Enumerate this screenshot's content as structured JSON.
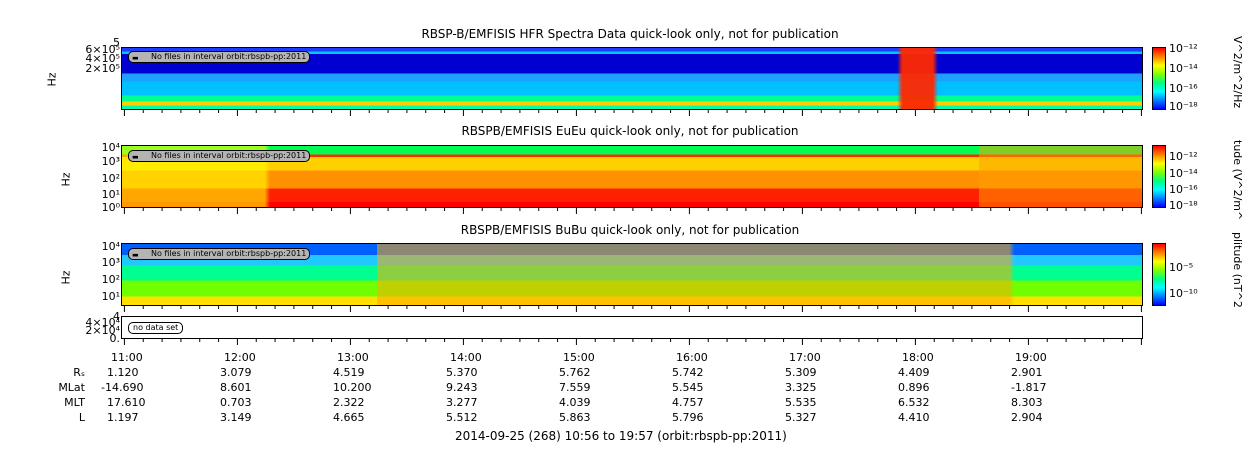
{
  "chart_data": [
    {
      "type": "heatmap",
      "title": "RBSP-B/EMFISIS  HFR Spectra Data quick-look only, not for publication",
      "ylabel": "Hz",
      "yticks": [
        "6×10⁵",
        "4×10⁵",
        "2×10⁵"
      ],
      "ytop": "5",
      "zlabel": "V^2/m^2/Hz",
      "zticks": [
        "10⁻¹²",
        "10⁻¹⁴",
        "10⁻¹⁶",
        "10⁻¹⁸"
      ],
      "note": "No files in interval orbit:rbspb-pp:2011"
    },
    {
      "type": "heatmap",
      "title": "RBSPB/EMFISIS  EuEu quick-look only, not for publication",
      "ylabel": "Hz",
      "yticks": [
        "10⁴",
        "10³",
        "10²",
        "10¹",
        "10⁰"
      ],
      "zlabel": "tude (V^2/m^",
      "zticks": [
        "10⁻¹²",
        "10⁻¹⁴",
        "10⁻¹⁶",
        "10⁻¹⁸"
      ],
      "note": "No files in interval orbit:rbspb-pp:2011"
    },
    {
      "type": "heatmap",
      "title": "RBSPB/EMFISIS  BuBu quick-look only, not for publication",
      "ylabel": "Hz",
      "yticks": [
        "10⁴",
        "10³",
        "10²",
        "10¹"
      ],
      "zlabel": "plitude (nT^2",
      "zticks": [
        "10⁻⁵",
        "10⁻¹⁰"
      ],
      "note": "No files in interval orbit:rbspb-pp:2011"
    },
    {
      "type": "line",
      "title": "",
      "yticks": [
        "4×10⁴",
        "2×10⁴",
        "0."
      ],
      "ytop": "4",
      "note": "no data set"
    }
  ],
  "time_axis": {
    "labels": [
      "11:00",
      "12:00",
      "13:00",
      "14:00",
      "15:00",
      "16:00",
      "17:00",
      "18:00",
      "19:00"
    ]
  },
  "ephemeris": [
    {
      "label": "Rₛ",
      "values": [
        "1.120",
        "3.079",
        "4.519",
        "5.370",
        "5.762",
        "5.742",
        "5.309",
        "4.409",
        "2.901"
      ]
    },
    {
      "label": "MLat",
      "values": [
        "-14.690",
        "8.601",
        "10.200",
        "9.243",
        "7.559",
        "5.545",
        "3.325",
        "0.896",
        "-1.817"
      ]
    },
    {
      "label": "MLT",
      "values": [
        "17.610",
        "0.703",
        "2.322",
        "3.277",
        "4.039",
        "4.757",
        "5.535",
        "6.532",
        "8.303"
      ]
    },
    {
      "label": "L",
      "values": [
        "1.197",
        "3.149",
        "4.665",
        "5.512",
        "5.863",
        "5.796",
        "5.327",
        "4.410",
        "2.904"
      ]
    }
  ],
  "footer": "2014-09-25 (268) 10:56 to 19:57 (orbit:rbspb-pp:2011)"
}
